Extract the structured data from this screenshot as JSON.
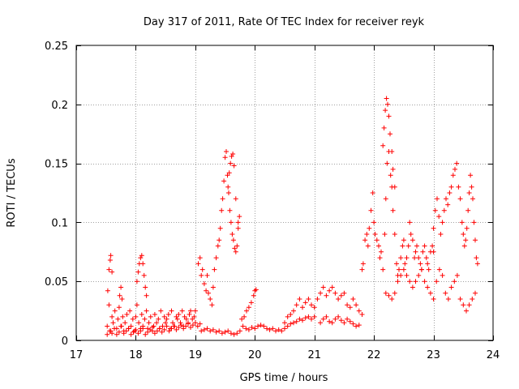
{
  "chart_data": {
    "type": "scatter",
    "title": "Day 317 of 2011, Rate Of TEC Index for receiver reyk",
    "xlabel": "GPS time / hours",
    "ylabel": "ROTI / TECUs",
    "xlim": [
      17,
      24
    ],
    "ylim": [
      0,
      0.25
    ],
    "x_ticks": [
      17,
      18,
      19,
      20,
      21,
      22,
      23,
      24
    ],
    "y_ticks": [
      0,
      0.05,
      0.1,
      0.15,
      0.2,
      0.25
    ],
    "y_tick_labels": [
      "0",
      "0.05",
      "0.1",
      "0.15",
      "0.2",
      "0.25"
    ],
    "grid": true,
    "marker": "+",
    "series": [
      {
        "name": "reyk ROTI",
        "color": "#ff0000",
        "x": [
          17.52,
          17.55,
          17.58,
          17.6,
          17.62,
          17.65,
          17.68,
          17.7,
          17.72,
          17.75,
          17.78,
          17.8,
          17.82,
          17.85,
          17.88,
          17.9,
          17.92,
          17.95,
          17.98,
          18.0,
          18.02,
          18.05,
          18.08,
          18.1,
          18.12,
          18.15,
          18.18,
          18.2,
          18.22,
          18.25,
          18.28,
          18.3,
          18.32,
          18.35,
          18.38,
          18.4,
          18.42,
          18.45,
          18.48,
          18.5,
          18.52,
          18.55,
          18.58,
          18.6,
          18.62,
          18.65,
          18.68,
          18.7,
          18.72,
          18.75,
          18.78,
          18.8,
          18.82,
          18.85,
          18.88,
          18.9,
          18.92,
          18.95,
          18.98,
          19.0,
          17.52,
          17.56,
          17.6,
          17.64,
          17.68,
          17.72,
          17.76,
          17.8,
          17.84,
          17.88,
          17.92,
          17.96,
          18.0,
          18.04,
          18.08,
          18.12,
          18.16,
          18.2,
          18.24,
          18.28,
          18.32,
          18.36,
          18.4,
          18.44,
          18.48,
          18.52,
          18.56,
          18.6,
          18.64,
          18.68,
          18.72,
          18.76,
          18.8,
          18.84,
          18.88,
          18.92,
          18.96,
          19.0,
          19.04,
          19.08,
          17.53,
          17.55,
          17.57,
          17.58,
          17.6,
          17.73,
          17.75,
          17.77,
          18.02,
          18.04,
          18.06,
          18.08,
          18.1,
          18.12,
          18.14,
          18.16,
          18.18,
          19.05,
          19.08,
          19.1,
          19.12,
          19.15,
          19.18,
          19.2,
          19.22,
          19.25,
          19.28,
          19.3,
          19.32,
          19.35,
          19.38,
          19.4,
          19.42,
          19.44,
          19.46,
          19.48,
          19.5,
          19.52,
          19.54,
          19.56,
          19.58,
          19.6,
          19.62,
          19.64,
          19.66,
          19.68,
          19.7,
          19.72,
          19.74,
          19.55,
          19.57,
          19.59,
          19.61,
          19.63,
          19.65,
          19.68,
          19.72,
          19.1,
          19.15,
          19.2,
          19.25,
          19.3,
          19.35,
          19.4,
          19.45,
          19.5,
          19.55,
          19.6,
          19.65,
          19.7,
          19.75,
          19.8,
          19.85,
          19.9,
          19.95,
          20.0,
          20.05,
          20.1,
          20.15,
          20.2,
          20.25,
          20.3,
          20.35,
          20.4,
          20.45,
          20.5,
          20.55,
          20.6,
          20.65,
          20.7,
          20.75,
          20.8,
          20.85,
          20.9,
          20.95,
          21.0,
          19.78,
          19.82,
          19.86,
          19.9,
          19.94,
          19.98,
          20.0,
          20.02,
          20.5,
          20.55,
          20.6,
          20.65,
          20.7,
          20.75,
          20.8,
          20.85,
          20.9,
          20.95,
          21.0,
          21.05,
          21.1,
          21.15,
          21.2,
          21.25,
          21.3,
          21.35,
          21.4,
          21.45,
          21.5,
          21.55,
          21.6,
          21.65,
          21.7,
          21.75,
          21.8,
          21.1,
          21.15,
          21.2,
          21.25,
          21.3,
          21.35,
          21.4,
          21.45,
          21.5,
          21.55,
          21.6,
          21.65,
          21.7,
          21.75,
          21.8,
          21.82,
          21.85,
          21.88,
          21.9,
          21.92,
          21.95,
          21.98,
          22.0,
          22.02,
          22.05,
          22.08,
          22.1,
          22.12,
          22.15,
          22.18,
          22.2,
          22.22,
          22.25,
          22.28,
          22.3,
          22.32,
          22.35,
          22.38,
          22.4,
          22.42,
          22.45,
          22.48,
          22.5,
          22.52,
          22.55,
          22.58,
          22.6,
          22.62,
          22.65,
          22.68,
          22.7,
          22.72,
          22.75,
          22.78,
          22.8,
          22.82,
          22.85,
          22.88,
          22.9,
          22.92,
          22.95,
          22.98,
          23.0,
          22.15,
          22.17,
          22.19,
          22.21,
          22.23,
          22.25,
          22.27,
          22.3,
          22.32,
          22.35,
          22.2,
          22.25,
          22.3,
          22.35,
          22.4,
          22.45,
          22.5,
          22.55,
          22.6,
          22.65,
          22.7,
          22.75,
          22.8,
          22.85,
          22.9,
          22.95,
          23.0,
          23.05,
          23.1,
          23.15,
          23.2,
          23.25,
          23.3,
          23.35,
          23.4,
          23.45,
          23.5,
          23.55,
          23.6,
          23.65,
          23.7,
          23.0,
          23.03,
          23.06,
          23.09,
          23.12,
          23.15,
          23.18,
          23.21,
          23.24,
          23.27,
          23.3,
          23.33,
          23.36,
          23.39,
          23.42,
          23.45,
          23.48,
          23.5,
          23.52,
          23.54,
          23.56,
          23.58,
          23.6,
          23.62,
          23.64,
          23.66,
          23.68,
          23.7,
          23.72,
          23.74
        ],
        "y": [
          0.012,
          0.03,
          0.008,
          0.02,
          0.015,
          0.025,
          0.01,
          0.018,
          0.028,
          0.012,
          0.02,
          0.008,
          0.015,
          0.022,
          0.01,
          0.025,
          0.012,
          0.018,
          0.008,
          0.02,
          0.03,
          0.015,
          0.01,
          0.022,
          0.012,
          0.018,
          0.025,
          0.01,
          0.015,
          0.02,
          0.008,
          0.012,
          0.022,
          0.015,
          0.018,
          0.01,
          0.025,
          0.012,
          0.02,
          0.015,
          0.018,
          0.022,
          0.01,
          0.025,
          0.015,
          0.012,
          0.02,
          0.018,
          0.022,
          0.015,
          0.025,
          0.012,
          0.02,
          0.018,
          0.015,
          0.022,
          0.025,
          0.018,
          0.02,
          0.025,
          0.005,
          0.008,
          0.006,
          0.01,
          0.005,
          0.007,
          0.012,
          0.006,
          0.008,
          0.01,
          0.005,
          0.007,
          0.009,
          0.006,
          0.008,
          0.01,
          0.005,
          0.007,
          0.009,
          0.011,
          0.006,
          0.008,
          0.01,
          0.007,
          0.009,
          0.012,
          0.008,
          0.01,
          0.012,
          0.009,
          0.011,
          0.013,
          0.01,
          0.012,
          0.014,
          0.011,
          0.013,
          0.015,
          0.012,
          0.014,
          0.042,
          0.06,
          0.068,
          0.072,
          0.058,
          0.038,
          0.045,
          0.035,
          0.05,
          0.058,
          0.065,
          0.07,
          0.072,
          0.065,
          0.055,
          0.045,
          0.038,
          0.065,
          0.07,
          0.055,
          0.06,
          0.048,
          0.042,
          0.055,
          0.04,
          0.035,
          0.03,
          0.045,
          0.06,
          0.07,
          0.08,
          0.085,
          0.095,
          0.11,
          0.12,
          0.135,
          0.155,
          0.16,
          0.14,
          0.125,
          0.11,
          0.1,
          0.09,
          0.085,
          0.078,
          0.075,
          0.08,
          0.095,
          0.105,
          0.13,
          0.142,
          0.15,
          0.156,
          0.158,
          0.148,
          0.12,
          0.1,
          0.008,
          0.009,
          0.01,
          0.008,
          0.009,
          0.007,
          0.008,
          0.006,
          0.007,
          0.008,
          0.006,
          0.005,
          0.006,
          0.008,
          0.012,
          0.01,
          0.009,
          0.011,
          0.01,
          0.012,
          0.013,
          0.012,
          0.01,
          0.009,
          0.01,
          0.008,
          0.009,
          0.008,
          0.01,
          0.012,
          0.014,
          0.015,
          0.016,
          0.018,
          0.017,
          0.019,
          0.02,
          0.018,
          0.02,
          0.018,
          0.02,
          0.025,
          0.028,
          0.032,
          0.038,
          0.042,
          0.043,
          0.015,
          0.02,
          0.022,
          0.025,
          0.03,
          0.035,
          0.028,
          0.032,
          0.035,
          0.03,
          0.028,
          0.035,
          0.04,
          0.045,
          0.038,
          0.042,
          0.045,
          0.04,
          0.035,
          0.038,
          0.04,
          0.03,
          0.028,
          0.035,
          0.03,
          0.025,
          0.022,
          0.015,
          0.018,
          0.02,
          0.016,
          0.015,
          0.018,
          0.02,
          0.017,
          0.015,
          0.018,
          0.016,
          0.014,
          0.012,
          0.013,
          0.06,
          0.065,
          0.085,
          0.09,
          0.08,
          0.095,
          0.11,
          0.125,
          0.1,
          0.09,
          0.085,
          0.08,
          0.07,
          0.075,
          0.06,
          0.09,
          0.12,
          0.15,
          0.16,
          0.14,
          0.13,
          0.11,
          0.09,
          0.065,
          0.055,
          0.06,
          0.07,
          0.08,
          0.085,
          0.065,
          0.07,
          0.08,
          0.1,
          0.09,
          0.085,
          0.07,
          0.075,
          0.08,
          0.07,
          0.065,
          0.06,
          0.075,
          0.08,
          0.07,
          0.065,
          0.06,
          0.075,
          0.08,
          0.075,
          0.165,
          0.18,
          0.195,
          0.205,
          0.2,
          0.19,
          0.175,
          0.16,
          0.145,
          0.13,
          0.04,
          0.038,
          0.035,
          0.04,
          0.05,
          0.055,
          0.06,
          0.055,
          0.05,
          0.045,
          0.05,
          0.055,
          0.06,
          0.05,
          0.045,
          0.04,
          0.035,
          0.05,
          0.06,
          0.055,
          0.04,
          0.035,
          0.045,
          0.05,
          0.055,
          0.035,
          0.03,
          0.025,
          0.03,
          0.035,
          0.04,
          0.095,
          0.11,
          0.12,
          0.105,
          0.09,
          0.1,
          0.11,
          0.12,
          0.115,
          0.125,
          0.13,
          0.14,
          0.145,
          0.15,
          0.13,
          0.12,
          0.1,
          0.09,
          0.08,
          0.085,
          0.095,
          0.11,
          0.125,
          0.14,
          0.13,
          0.12,
          0.1,
          0.085,
          0.07,
          0.065
        ]
      }
    ]
  }
}
